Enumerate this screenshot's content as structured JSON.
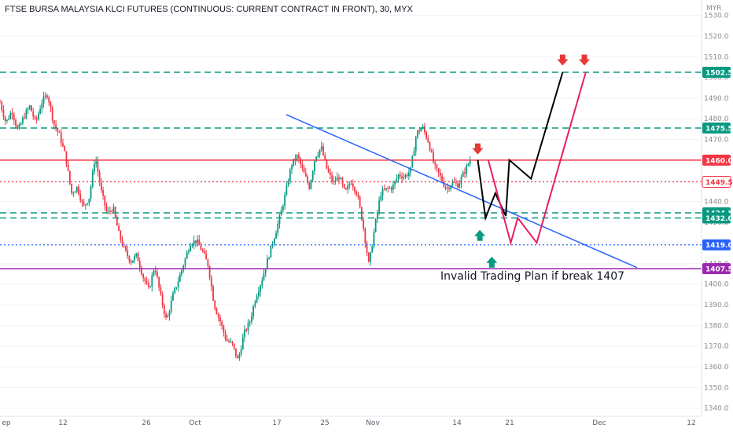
{
  "title": "FTSE BURSA MALAYSIA KLCI FUTURES (CONTINUOUS: CURRENT CONTRACT IN FRONT), 30, MYX",
  "currency": "MYR",
  "chart_data": {
    "type": "candlestick",
    "title": "FTSE BURSA MALAYSIA KLCI FUTURES (CONTINUOUS: CURRENT CONTRACT IN FRONT), 30, MYX",
    "ylabel": "MYR",
    "ylim": [
      1334,
      1538
    ],
    "y_ticks": [
      1340,
      1350,
      1360,
      1370,
      1380,
      1390,
      1400,
      1410,
      1420,
      1430,
      1440,
      1450,
      1460,
      1470,
      1480,
      1490,
      1500,
      1510,
      1520,
      1530
    ],
    "x_ticks": [
      "ep",
      "12",
      "26",
      "Oct",
      "17",
      "25",
      "Nov",
      "14",
      "21",
      "Dec",
      "12"
    ],
    "price_path": [
      1488,
      1478,
      1484,
      1474,
      1481,
      1486,
      1478,
      1488,
      1492,
      1478,
      1472,
      1462,
      1444,
      1447,
      1437,
      1442,
      1462,
      1445,
      1434,
      1437,
      1424,
      1416,
      1411,
      1414,
      1404,
      1397,
      1409,
      1394,
      1382,
      1394,
      1402,
      1411,
      1420,
      1421,
      1416,
      1409,
      1390,
      1382,
      1373,
      1371,
      1363,
      1376,
      1382,
      1394,
      1402,
      1412,
      1422,
      1432,
      1444,
      1458,
      1462,
      1454,
      1447,
      1462,
      1466,
      1455,
      1449,
      1452,
      1444,
      1450,
      1444,
      1429,
      1409,
      1428,
      1444,
      1446,
      1447,
      1453,
      1452,
      1455,
      1473,
      1476,
      1469,
      1457,
      1452,
      1446,
      1449,
      1448,
      1454,
      1460
    ],
    "levels": [
      {
        "label": "1502.5",
        "value": 1502.5,
        "style": "dashed",
        "color": "#089981"
      },
      {
        "label": "1475.5",
        "value": 1475.5,
        "style": "dashed",
        "color": "#089981"
      },
      {
        "label": "1460.0",
        "value": 1460.0,
        "style": "solid",
        "color": "#f23645"
      },
      {
        "label": "1449.5",
        "value": 1449.5,
        "style": "dotted",
        "color": "#f23645"
      },
      {
        "label": "1434.5",
        "value": 1434.5,
        "style": "dashed",
        "color": "#089981"
      },
      {
        "label": "1432.0",
        "value": 1432.0,
        "style": "dashed",
        "color": "#089981"
      },
      {
        "label": "1419.0",
        "value": 1419.0,
        "style": "dotted",
        "color": "#2962ff"
      },
      {
        "label": "1407.5",
        "value": 1407.5,
        "style": "solid",
        "color": "#9c27b0"
      }
    ],
    "trendline": {
      "from": [
        0.408,
        1482
      ],
      "to": [
        0.908,
        1408
      ],
      "color": "#2962ff"
    },
    "projection_paths": [
      {
        "name": "",
        "color": "#000000",
        "points": [
          [
            0.681,
            1460
          ],
          [
            0.692,
            1432
          ],
          [
            0.706,
            1444
          ],
          [
            0.721,
            1433
          ],
          [
            0.726,
            1460
          ],
          [
            0.757,
            1451
          ],
          [
            0.802,
            1502.5
          ]
        ]
      },
      {
        "name": "",
        "color": "#e91e63",
        "points": [
          [
            0.696,
            1460
          ],
          [
            0.728,
            1420
          ],
          [
            0.738,
            1432
          ],
          [
            0.765,
            1420
          ],
          [
            0.835,
            1502.5
          ]
        ]
      }
    ],
    "arrows": [
      {
        "dir": "down",
        "color": "#e53935",
        "x": 0.681,
        "y": 1465
      },
      {
        "dir": "down",
        "color": "#e53935",
        "x": 0.802,
        "y": 1508
      },
      {
        "dir": "down",
        "color": "#e53935",
        "x": 0.833,
        "y": 1508
      },
      {
        "dir": "up",
        "color": "#089981",
        "x": 0.684,
        "y": 1424
      },
      {
        "dir": "up",
        "color": "#089981",
        "x": 0.701,
        "y": 1411
      }
    ],
    "annotation": "Invalid Trading Plan if break 1407"
  },
  "colors": {
    "up": "#089981",
    "down": "#f23645",
    "axis_text": "#8c8c8c",
    "grid": "#f0f3fa"
  }
}
